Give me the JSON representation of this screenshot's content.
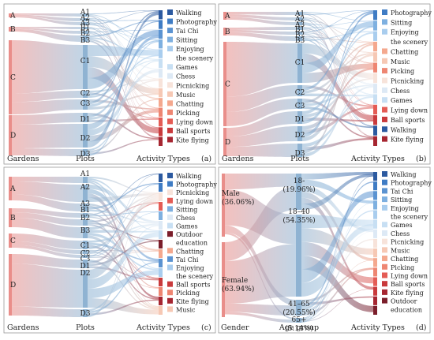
{
  "panels": [
    {
      "tag": "(a)",
      "axis_labels": [
        "Gardens",
        "Plots",
        "Activity Types"
      ],
      "gardens": [
        "A",
        "B",
        "C",
        "D"
      ],
      "plots": [
        "A1",
        "A2",
        "A3",
        "B1",
        "B2",
        "B3",
        "C1",
        "C2",
        "C3",
        "D1",
        "D2",
        "D3"
      ],
      "legend": [
        "Walking",
        "Photography",
        "Tai Chi",
        "Sitting",
        "Enjoying the scenery",
        "Games",
        "Chess",
        "Picnicking",
        "Music",
        "Chatting",
        "Picking",
        "Lying down",
        "Ball sports",
        "Kite flying"
      ]
    },
    {
      "tag": "(b)",
      "axis_labels": [
        "Gardens",
        "Plots",
        "Activity Types"
      ],
      "gardens": [
        "A",
        "B",
        "C",
        "D"
      ],
      "plots": [
        "A1",
        "A2",
        "A3",
        "B1",
        "B2",
        "B3",
        "C1",
        "C2",
        "C3",
        "D1",
        "D2",
        "D3"
      ],
      "legend": [
        "Photography",
        "Sitting",
        "Enjoying the scenery",
        "Chatting",
        "Music",
        "Picking",
        "Picnicking",
        "Chess",
        "Games",
        "Lying down",
        "Ball sports",
        "Walking",
        "Kite flying"
      ]
    },
    {
      "tag": "(c)",
      "axis_labels": [
        "Gardens",
        "Plots",
        "Activity Types"
      ],
      "gardens": [
        "A",
        "B",
        "C",
        "D"
      ],
      "plots": [
        "A1",
        "A2",
        "A3",
        "B1",
        "B2",
        "B3",
        "C1",
        "C2",
        "C3",
        "D1",
        "D2",
        "D3"
      ],
      "legend": [
        "Walking",
        "Photography",
        "Picnicking",
        "Lying down",
        "Sitting",
        "Chess",
        "Games",
        "Outdoor education",
        "Chatting",
        "Tai Chi",
        "Enjoying the scenery",
        "Ball sports",
        "Picking",
        "Kite flying",
        "Music"
      ]
    },
    {
      "tag": "(d)",
      "axis_labels": [
        "Gender",
        "Age group",
        "Activity Types"
      ],
      "genders": [
        {
          "name": "Male",
          "pct": "(36.06%)"
        },
        {
          "name": "Female",
          "pct": "(63.94%)"
        }
      ],
      "ages": [
        {
          "name": "18-",
          "pct": "(19.96%)"
        },
        {
          "name": "18–40",
          "pct": "(54.35%)"
        },
        {
          "name": "41–65",
          "pct": "(20.55%)"
        },
        {
          "name": "65+",
          "pct": "(5.14%)"
        }
      ],
      "legend": [
        "Walking",
        "Photography",
        "Tai Chi",
        "Sitting",
        "Enjoying the scenery",
        "Games",
        "Chess",
        "Picnicking",
        "Music",
        "Chatting",
        "Picking",
        "Lying down",
        "Ball sports",
        "Kite flying",
        "Outdoor education"
      ]
    }
  ],
  "colors": {
    "Walking": "#2c5aa0",
    "Photography": "#3f7cc4",
    "Tai Chi": "#5b93d1",
    "Sitting": "#7eb0e0",
    "Enjoying the scenery": "#a9cdee",
    "Games": "#c7dff3",
    "Chess": "#dde9f5",
    "Picnicking": "#f7e3da",
    "Music": "#f6c8b4",
    "Chatting": "#f4a88e",
    "Picking": "#ee8672",
    "Lying down": "#e45c55",
    "Ball sports": "#c93a3c",
    "Kite flying": "#a62631",
    "Outdoor education": "#7b1e2b",
    "source_node": "#e98e8a",
    "mid_node": "#8fb3d2"
  }
}
